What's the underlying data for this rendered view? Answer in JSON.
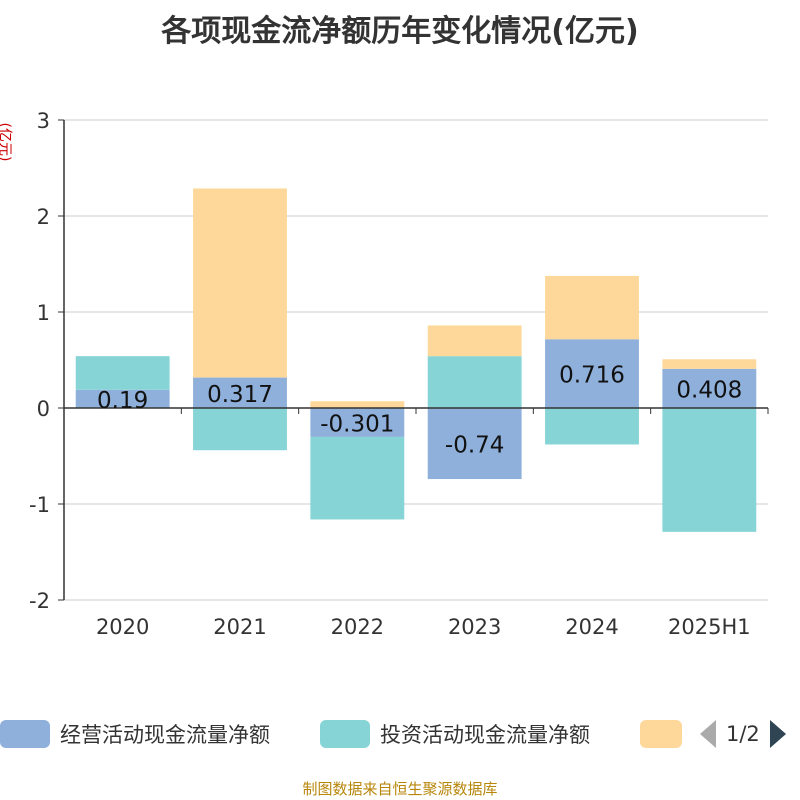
{
  "title": "各项现金流净额历年变化情况(亿元)",
  "unit_label": "(亿元)",
  "colors": {
    "operating": "#8eb0db",
    "investing": "#86d4d6",
    "financing": "#fdd89a",
    "grid": "#cccccc",
    "axis": "#333333",
    "footer": "#b8860b",
    "unit": "#cc0000"
  },
  "chart_data": {
    "type": "bar",
    "stacked": true,
    "categories": [
      "2020",
      "2021",
      "2022",
      "2023",
      "2024",
      "2025H1"
    ],
    "ylim": [
      -2,
      3
    ],
    "yticks": [
      "-2",
      "-1",
      "0",
      "1",
      "2",
      "3"
    ],
    "grid": true,
    "series": [
      {
        "name": "经营活动现金流量净额",
        "values": [
          0.19,
          0.317,
          -0.301,
          -0.74,
          0.716,
          0.408
        ],
        "labels": [
          "0.19",
          "0.317",
          "-0.301",
          "-0.74",
          "0.716",
          "0.408"
        ]
      },
      {
        "name": "投资活动现金流量净额",
        "values": [
          0.35,
          -0.44,
          -0.86,
          0.54,
          -0.38,
          -1.29
        ]
      },
      {
        "name": "",
        "values": [
          0.0,
          1.97,
          0.07,
          0.32,
          0.66,
          0.1
        ]
      }
    ]
  },
  "legend": {
    "items": [
      "经营活动现金流量净额",
      "投资活动现金流量净额",
      ""
    ],
    "page_indicator": "1/2"
  },
  "footer": "制图数据来自恒生聚源数据库"
}
